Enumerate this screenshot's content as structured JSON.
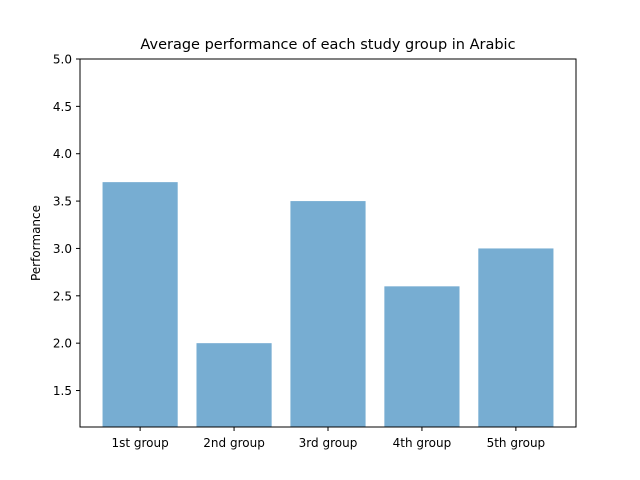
{
  "chart_data": {
    "type": "bar",
    "title": "Average performance of each study group in Arabic",
    "xlabel": "",
    "ylabel": "Performance",
    "categories": [
      "1st group",
      "2nd group",
      "3rd group",
      "4th group",
      "5th group"
    ],
    "values": [
      3.7,
      2.0,
      3.5,
      2.6,
      3.0
    ],
    "ylim": [
      1.115,
      5.0
    ],
    "yticks": [
      1.5,
      2.0,
      2.5,
      3.0,
      3.5,
      4.0,
      4.5,
      5.0
    ],
    "ytick_labels": [
      "1.5",
      "2.0",
      "2.5",
      "3.0",
      "3.5",
      "4.0",
      "4.5",
      "5.0"
    ],
    "bar_color": "#77add2",
    "grid": false,
    "legend": "none"
  }
}
